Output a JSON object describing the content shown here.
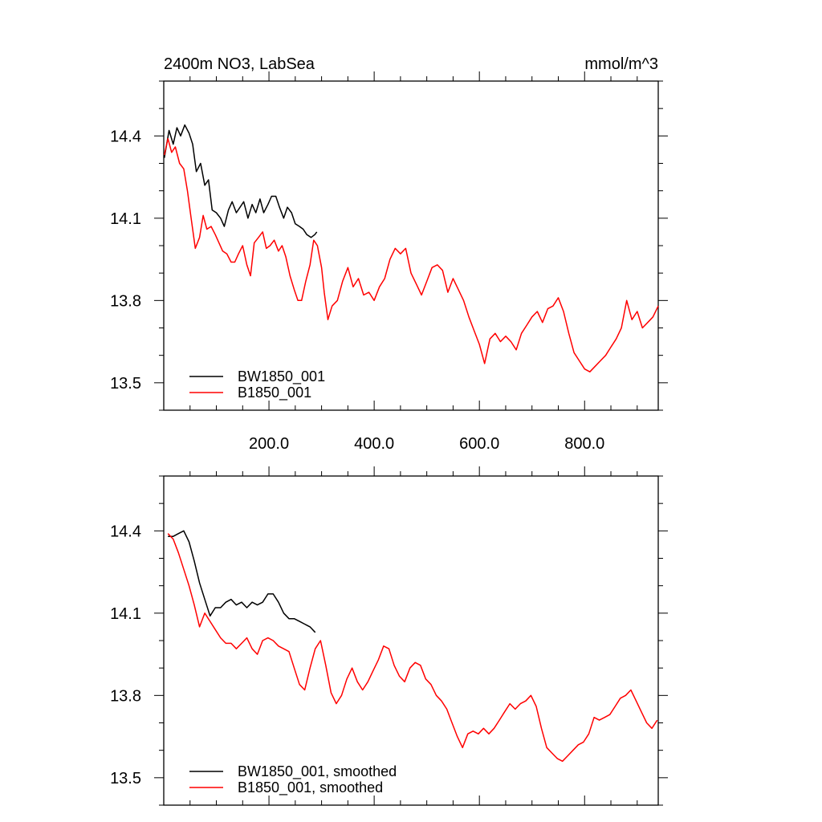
{
  "chart_data": [
    {
      "type": "line",
      "title_left": "2400m NO3, LabSea",
      "title_right": "mmol/m^3",
      "xlim": [
        0,
        940
      ],
      "ylim": [
        13.4,
        14.6
      ],
      "x_ticks": [
        200,
        400,
        600,
        800
      ],
      "x_tick_labels": [
        "200.0",
        "400.0",
        "600.0",
        "800.0"
      ],
      "y_ticks": [
        13.5,
        13.8,
        14.1,
        14.4
      ],
      "y_tick_labels": [
        "13.5",
        "13.8",
        "14.1",
        "14.4"
      ],
      "legend_position": "bottom-left",
      "series": [
        {
          "name": "BW1850_001",
          "color": "#000000",
          "x": [
            1,
            10,
            18,
            25,
            32,
            40,
            48,
            55,
            62,
            70,
            78,
            85,
            92,
            100,
            108,
            115,
            123,
            130,
            138,
            145,
            152,
            160,
            168,
            175,
            183,
            190,
            198,
            205,
            213,
            220,
            228,
            235,
            243,
            250,
            258,
            265,
            272,
            280,
            287,
            291
          ],
          "y": [
            14.32,
            14.42,
            14.37,
            14.43,
            14.4,
            14.44,
            14.41,
            14.37,
            14.27,
            14.3,
            14.22,
            14.24,
            14.13,
            14.12,
            14.1,
            14.07,
            14.13,
            14.16,
            14.12,
            14.14,
            14.16,
            14.1,
            14.15,
            14.12,
            14.17,
            14.12,
            14.15,
            14.18,
            14.18,
            14.14,
            14.1,
            14.14,
            14.12,
            14.08,
            14.07,
            14.06,
            14.04,
            14.03,
            14.04,
            14.05
          ]
        },
        {
          "name": "B1850_001",
          "color": "#ff0000",
          "x": [
            1,
            8,
            15,
            22,
            30,
            38,
            45,
            52,
            60,
            68,
            75,
            82,
            90,
            98,
            105,
            112,
            120,
            128,
            135,
            142,
            150,
            158,
            165,
            172,
            180,
            188,
            195,
            202,
            210,
            218,
            225,
            232,
            240,
            248,
            255,
            262,
            270,
            278,
            285,
            292,
            300,
            305,
            312,
            320,
            330,
            340,
            350,
            360,
            370,
            380,
            390,
            400,
            410,
            420,
            430,
            440,
            450,
            460,
            470,
            480,
            490,
            500,
            510,
            520,
            530,
            540,
            550,
            560,
            570,
            580,
            590,
            600,
            610,
            620,
            630,
            640,
            650,
            660,
            670,
            680,
            690,
            700,
            710,
            720,
            730,
            740,
            750,
            760,
            770,
            780,
            790,
            800,
            810,
            820,
            830,
            840,
            850,
            860,
            870,
            880,
            890,
            900,
            910,
            920,
            930,
            940
          ],
          "y": [
            14.33,
            14.39,
            14.34,
            14.36,
            14.3,
            14.28,
            14.2,
            14.1,
            13.99,
            14.03,
            14.11,
            14.06,
            14.07,
            14.04,
            14.01,
            13.98,
            13.97,
            13.94,
            13.94,
            13.97,
            14.0,
            13.93,
            13.89,
            14.01,
            14.03,
            14.05,
            13.99,
            14.0,
            14.02,
            13.98,
            14.0,
            13.96,
            13.89,
            13.84,
            13.8,
            13.8,
            13.87,
            13.93,
            14.02,
            14.0,
            13.92,
            13.83,
            13.73,
            13.78,
            13.8,
            13.87,
            13.92,
            13.85,
            13.88,
            13.82,
            13.83,
            13.8,
            13.85,
            13.88,
            13.95,
            13.99,
            13.97,
            13.99,
            13.9,
            13.86,
            13.82,
            13.87,
            13.92,
            13.93,
            13.91,
            13.83,
            13.88,
            13.84,
            13.8,
            13.74,
            13.69,
            13.64,
            13.57,
            13.66,
            13.68,
            13.65,
            13.67,
            13.65,
            13.62,
            13.68,
            13.71,
            13.74,
            13.76,
            13.72,
            13.77,
            13.78,
            13.81,
            13.76,
            13.68,
            13.61,
            13.58,
            13.55,
            13.54,
            13.56,
            13.58,
            13.6,
            13.63,
            13.66,
            13.7,
            13.8,
            13.73,
            13.76,
            13.7,
            13.72,
            13.74,
            13.78
          ]
        }
      ]
    },
    {
      "type": "line",
      "xlim": [
        0,
        940
      ],
      "ylim": [
        13.4,
        14.6
      ],
      "x_ticks": [
        200,
        400,
        600,
        800
      ],
      "y_ticks": [
        13.5,
        13.8,
        14.1,
        14.4
      ],
      "y_tick_labels": [
        "13.5",
        "13.8",
        "14.1",
        "14.4"
      ],
      "legend_position": "bottom-left",
      "series": [
        {
          "name": "BW1850_001, smoothed",
          "color": "#000000",
          "x": [
            8,
            18,
            28,
            38,
            48,
            58,
            68,
            78,
            88,
            98,
            108,
            118,
            128,
            138,
            148,
            158,
            168,
            178,
            188,
            198,
            208,
            218,
            228,
            238,
            248,
            258,
            268,
            278,
            288
          ],
          "y": [
            14.38,
            14.38,
            14.39,
            14.4,
            14.36,
            14.29,
            14.21,
            14.15,
            14.09,
            14.12,
            14.12,
            14.14,
            14.15,
            14.13,
            14.14,
            14.12,
            14.14,
            14.13,
            14.14,
            14.17,
            14.17,
            14.14,
            14.1,
            14.08,
            14.08,
            14.07,
            14.06,
            14.05,
            14.03
          ]
        },
        {
          "name": "B1850_001, smoothed",
          "color": "#ff0000",
          "x": [
            8,
            18,
            28,
            38,
            48,
            58,
            68,
            78,
            88,
            98,
            108,
            118,
            128,
            138,
            148,
            158,
            168,
            178,
            188,
            198,
            208,
            218,
            228,
            238,
            248,
            258,
            268,
            278,
            288,
            298,
            308,
            318,
            328,
            338,
            348,
            358,
            368,
            378,
            388,
            398,
            408,
            418,
            428,
            438,
            448,
            458,
            468,
            478,
            488,
            498,
            508,
            518,
            528,
            538,
            548,
            558,
            568,
            578,
            588,
            598,
            608,
            618,
            628,
            638,
            648,
            658,
            668,
            678,
            688,
            698,
            708,
            718,
            728,
            738,
            748,
            758,
            768,
            778,
            788,
            798,
            808,
            818,
            828,
            838,
            848,
            858,
            868,
            878,
            888,
            898,
            908,
            918,
            928,
            938
          ],
          "y": [
            14.39,
            14.37,
            14.32,
            14.26,
            14.2,
            14.13,
            14.05,
            14.1,
            14.07,
            14.04,
            14.01,
            13.99,
            13.99,
            13.97,
            13.99,
            14.01,
            13.97,
            13.95,
            14.0,
            14.01,
            14.0,
            13.98,
            13.97,
            13.96,
            13.9,
            13.84,
            13.82,
            13.9,
            13.97,
            14.0,
            13.91,
            13.81,
            13.77,
            13.8,
            13.86,
            13.9,
            13.85,
            13.82,
            13.85,
            13.89,
            13.93,
            13.98,
            13.97,
            13.91,
            13.87,
            13.85,
            13.9,
            13.92,
            13.91,
            13.86,
            13.84,
            13.8,
            13.78,
            13.75,
            13.7,
            13.65,
            13.61,
            13.66,
            13.67,
            13.66,
            13.68,
            13.66,
            13.68,
            13.71,
            13.74,
            13.77,
            13.75,
            13.77,
            13.78,
            13.8,
            13.76,
            13.68,
            13.61,
            13.59,
            13.57,
            13.56,
            13.58,
            13.6,
            13.62,
            13.63,
            13.66,
            13.72,
            13.71,
            13.72,
            13.73,
            13.76,
            13.79,
            13.8,
            13.82,
            13.78,
            13.74,
            13.7,
            13.68,
            13.71
          ]
        }
      ]
    }
  ]
}
